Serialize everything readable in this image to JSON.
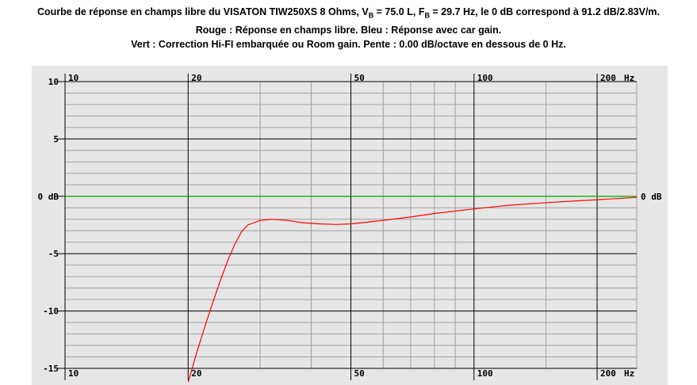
{
  "title": {
    "line1": {
      "pre": "Courbe de réponse en champs libre du VISATON TIW250XS 8 Ohms, V",
      "sub1": "B",
      "mid1": " = 75.0 L, F",
      "sub2": "B",
      "post": " = 29.7 Hz, le 0 dB correspond à 91.2 dB/2.83V/m."
    },
    "line2": "Rouge : Réponse en champs libre. Bleu : Réponse avec car gain.",
    "line3": "Vert : Correction Hi-FI embarquée ou Room gain. Pente : 0.00 dB/octave en dessous de 0 Hz."
  },
  "colors": {
    "plot_background": "#e6e6e6",
    "major_grid": "#000000",
    "minor_grid": "#a0a0a0",
    "red_curve": "#ff0000",
    "green_curve": "#00cc00"
  },
  "chart_data": {
    "type": "line",
    "x_scale": "log",
    "xlim": [
      10,
      250
    ],
    "ylim": [
      -15,
      10
    ],
    "x_major_ticks": [
      10,
      20,
      50,
      100,
      200
    ],
    "x_minor_ticks": [
      30,
      40,
      60,
      70,
      80,
      90,
      150,
      250
    ],
    "x_tick_labels": [
      "10",
      "20",
      "50",
      "100",
      "200"
    ],
    "x_unit_label": "Hz",
    "y_major_ticks": [
      10,
      5,
      0,
      -5,
      -10,
      -15
    ],
    "y_tick_labels": [
      "10",
      "5",
      "0 dB",
      "-5",
      "-10",
      "-15"
    ],
    "right_label": "0 dB",
    "grid": true,
    "series": [
      {
        "color": "#ff0000",
        "x": [
          20,
          21,
          22,
          23,
          24,
          25,
          26,
          27,
          28,
          30,
          32,
          35,
          38,
          42,
          46,
          50,
          55,
          60,
          70,
          80,
          100,
          120,
          150,
          200,
          250
        ],
        "y": [
          -16.2,
          -13.6,
          -11.3,
          -9.2,
          -7.3,
          -5.6,
          -4.2,
          -3.1,
          -2.5,
          -2.1,
          -2.0,
          -2.1,
          -2.3,
          -2.4,
          -2.45,
          -2.4,
          -2.25,
          -2.1,
          -1.8,
          -1.5,
          -1.1,
          -0.8,
          -0.55,
          -0.3,
          -0.1
        ]
      },
      {
        "color": "#00cc00",
        "x": [
          10,
          250
        ],
        "y": [
          0,
          0
        ]
      }
    ]
  }
}
